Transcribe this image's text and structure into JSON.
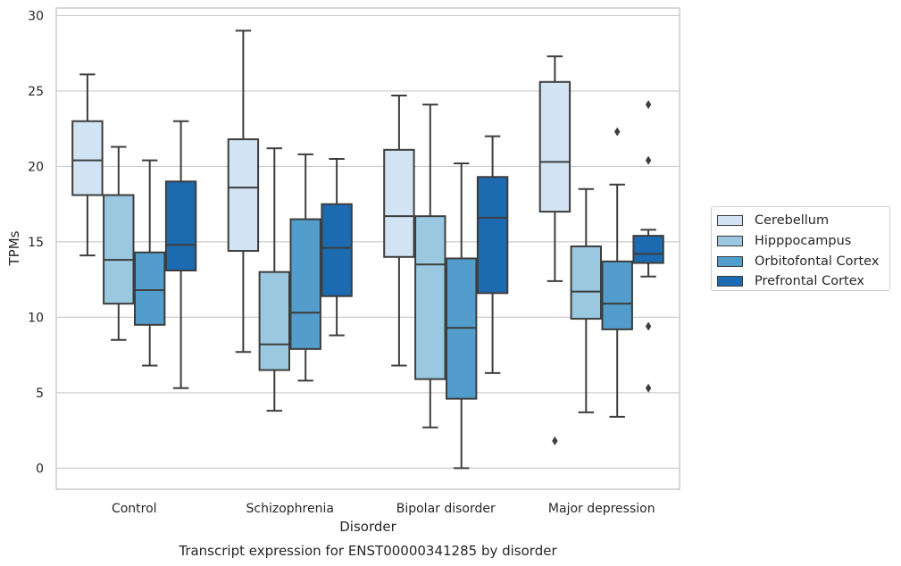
{
  "chart_data": {
    "type": "boxplot",
    "title": "Transcript expression for ENST00000341285 by disorder",
    "xlabel": "Disorder",
    "ylabel": "TPMs",
    "ylim": [
      -1.4,
      30.5
    ],
    "yticks": [
      0,
      5,
      10,
      15,
      20,
      25,
      30
    ],
    "grid": true,
    "legend_position": "right",
    "categories": [
      "Control",
      "Schizophrenia",
      "Bipolar disorder",
      "Major depression"
    ],
    "series": [
      {
        "name": "Cerebellum",
        "color": "#d2e3f3",
        "boxes": [
          {
            "whislo": 14.1,
            "q1": 18.1,
            "med": 20.4,
            "q3": 23.0,
            "whishi": 26.1,
            "fliers": []
          },
          {
            "whislo": 7.7,
            "q1": 14.4,
            "med": 18.6,
            "q3": 21.8,
            "whishi": 29.0,
            "fliers": []
          },
          {
            "whislo": 6.8,
            "q1": 14.0,
            "med": 16.7,
            "q3": 21.1,
            "whishi": 24.7,
            "fliers": []
          },
          {
            "whislo": 12.4,
            "q1": 17.0,
            "med": 20.3,
            "q3": 25.6,
            "whishi": 27.3,
            "fliers": [
              1.8
            ]
          }
        ]
      },
      {
        "name": "Hipppocampus",
        "color": "#9ac8e0",
        "boxes": [
          {
            "whislo": 8.5,
            "q1": 10.9,
            "med": 13.8,
            "q3": 18.1,
            "whishi": 21.3,
            "fliers": []
          },
          {
            "whislo": 3.8,
            "q1": 6.5,
            "med": 8.2,
            "q3": 13.0,
            "whishi": 21.2,
            "fliers": []
          },
          {
            "whislo": 2.7,
            "q1": 5.9,
            "med": 13.5,
            "q3": 16.7,
            "whishi": 24.1,
            "fliers": []
          },
          {
            "whislo": 3.7,
            "q1": 9.9,
            "med": 11.7,
            "q3": 14.7,
            "whishi": 18.5,
            "fliers": []
          }
        ]
      },
      {
        "name": "Orbitofontal Cortex",
        "color": "#529dcc",
        "boxes": [
          {
            "whislo": 6.8,
            "q1": 9.5,
            "med": 11.8,
            "q3": 14.3,
            "whishi": 20.4,
            "fliers": []
          },
          {
            "whislo": 5.8,
            "q1": 7.9,
            "med": 10.3,
            "q3": 16.5,
            "whishi": 20.8,
            "fliers": []
          },
          {
            "whislo": 0.0,
            "q1": 4.6,
            "med": 9.3,
            "q3": 13.9,
            "whishi": 20.2,
            "fliers": []
          },
          {
            "whislo": 3.4,
            "q1": 9.2,
            "med": 10.9,
            "q3": 13.7,
            "whishi": 18.8,
            "fliers": [
              22.3
            ]
          }
        ]
      },
      {
        "name": "Prefrontal Cortex",
        "color": "#1c6aaf",
        "boxes": [
          {
            "whislo": 5.3,
            "q1": 13.1,
            "med": 14.8,
            "q3": 19.0,
            "whishi": 23.0,
            "fliers": []
          },
          {
            "whislo": 8.8,
            "q1": 11.4,
            "med": 14.6,
            "q3": 17.5,
            "whishi": 20.5,
            "fliers": []
          },
          {
            "whislo": 6.3,
            "q1": 11.6,
            "med": 16.6,
            "q3": 19.3,
            "whishi": 22.0,
            "fliers": []
          },
          {
            "whislo": 12.7,
            "q1": 13.6,
            "med": 14.2,
            "q3": 15.4,
            "whishi": 15.8,
            "fliers": [
              24.1,
              20.4,
              9.4,
              5.3
            ]
          }
        ]
      }
    ]
  }
}
